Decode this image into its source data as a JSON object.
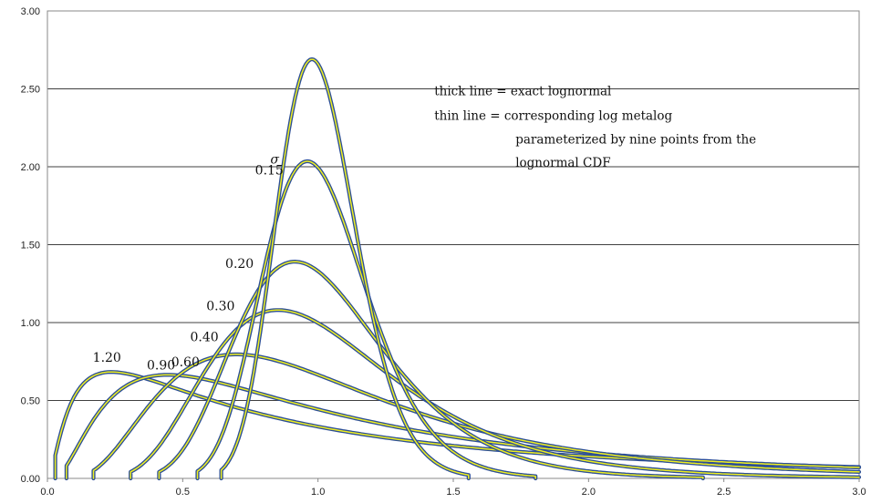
{
  "chart_data": {
    "type": "line",
    "xlim": [
      0,
      3
    ],
    "ylim": [
      0,
      3
    ],
    "x_ticks": [
      "0.0",
      "0.5",
      "1.0",
      "1.5",
      "2.0",
      "2.5",
      "3.0"
    ],
    "y_ticks": [
      "0.00",
      "0.50",
      "1.00",
      "1.50",
      "2.00",
      "2.50",
      "3.00"
    ],
    "grid": "horizontal",
    "sigma_symbol": "σ",
    "series": [
      {
        "name": "0.15",
        "sigma": 0.15
      },
      {
        "name": "0.20",
        "sigma": 0.2
      },
      {
        "name": "0.30",
        "sigma": 0.3
      },
      {
        "name": "0.40",
        "sigma": 0.4
      },
      {
        "name": "0.60",
        "sigma": 0.6
      },
      {
        "name": "0.90",
        "sigma": 0.9
      },
      {
        "name": "1.20",
        "sigma": 1.2
      }
    ],
    "annotation": [
      "thick line = exact lognormal",
      "thin line  = corresponding log metalog",
      "parameterized by nine points from the",
      "lognormal CDF"
    ],
    "colors": {
      "exact": "#2d4f96",
      "metalog": "#f0f020",
      "grid": "#000000"
    }
  }
}
